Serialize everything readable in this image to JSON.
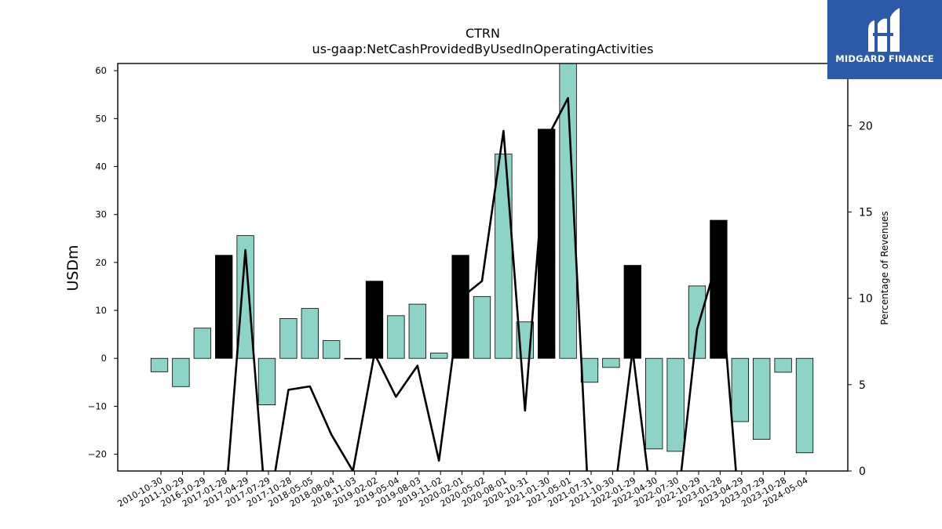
{
  "chart_data": {
    "type": "bar",
    "title": "CTRN",
    "subtitle": "us-gaap:NetCashProvidedByUsedInOperatingActivities",
    "ylabel": "USDm",
    "y2label": "Percentage of Revenues",
    "ylim": [
      -23.5,
      61.5
    ],
    "y2lim": [
      0,
      23.6
    ],
    "yticks": [
      -20,
      -10,
      0,
      10,
      20,
      30,
      40,
      50,
      60
    ],
    "y2ticks": [
      0,
      5,
      10,
      15,
      20
    ],
    "categories": [
      "2010-10-30",
      "2011-10-29",
      "2016-10-29",
      "2017-01-28",
      "2017-04-29",
      "2017-07-29",
      "2017-10-28",
      "2018-05-05",
      "2018-08-04",
      "2018-11-03",
      "2019-02-02",
      "2019-05-04",
      "2019-08-03",
      "2019-11-02",
      "2020-02-01",
      "2020-05-02",
      "2020-08-01",
      "2020-10-31",
      "2021-01-30",
      "2021-05-01",
      "2021-07-31",
      "2021-10-30",
      "2022-01-29",
      "2022-04-30",
      "2022-07-30",
      "2022-10-29",
      "2023-01-28",
      "2023-04-29",
      "2023-07-29",
      "2023-10-28",
      "2024-05-04"
    ],
    "series": [
      {
        "values": [
          -2.8,
          -5.9,
          6.3,
          21.5,
          25.6,
          -9.7,
          8.3,
          10.4,
          3.7,
          0,
          16.1,
          8.9,
          11.3,
          1.1,
          21.5,
          12.9,
          42.6,
          7.6,
          47.8,
          61.5,
          -5.0,
          -1.9,
          19.4,
          -18.9,
          -19.4,
          15.1,
          28.8,
          -13.2,
          -16.9,
          -2.9,
          -19.7
        ]
      },
      {
        "type": "line",
        "values": [
          null,
          null,
          null,
          null,
          12.8,
          null,
          4.7,
          4.9,
          2.1,
          0.0,
          6.8,
          4.3,
          6.1,
          0.6,
          10.0,
          11.0,
          19.7,
          3.5,
          19.2,
          21.6,
          null,
          null,
          7.0,
          null,
          null,
          8.2,
          12.5,
          null,
          null,
          null,
          null
        ]
      }
    ],
    "highlight_color": "#000000",
    "bar_color": "#8dd3c7",
    "line_color": "#000000",
    "grid": false,
    "logo": {
      "text": "MIDGARD FINANCE",
      "color": "#2c5aa8"
    }
  }
}
